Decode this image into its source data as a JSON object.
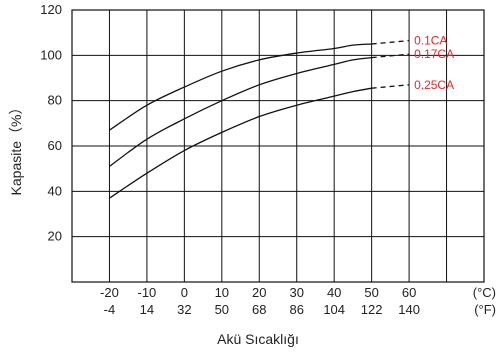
{
  "chart_data": {
    "type": "line",
    "xlabel": "Akü Sıcaklığı",
    "ylabel": "Kapasite（%）",
    "x_unit_c": "(°C)",
    "x_unit_f": "(°F)",
    "x_ticks_c": [
      "-20",
      "-10",
      "0",
      "10",
      "20",
      "30",
      "40",
      "50",
      "60"
    ],
    "x_ticks_f": [
      "-4",
      "14",
      "32",
      "50",
      "68",
      "86",
      "104",
      "122",
      "140"
    ],
    "y_ticks": [
      "20",
      "40",
      "60",
      "80",
      "100",
      "120"
    ],
    "xlim": [
      -30,
      80
    ],
    "ylim": [
      0,
      120
    ],
    "grid": true,
    "x": [
      -20,
      -10,
      0,
      10,
      20,
      30,
      40,
      45,
      50
    ],
    "series": [
      {
        "name": "0.1CA",
        "color": "#e8262b",
        "values": [
          67,
          78,
          86,
          93,
          98,
          101,
          103,
          104.5,
          105
        ],
        "dashed_end": [
          50,
          105,
          60,
          106.5
        ]
      },
      {
        "name": "0.17CA",
        "color": "#e8262b",
        "values": [
          51,
          63,
          72,
          80,
          87,
          92,
          96,
          98,
          99
        ],
        "dashed_end": [
          50,
          99,
          60,
          100.5
        ]
      },
      {
        "name": "0.25CA",
        "color": "#e8262b",
        "values": [
          37,
          48,
          58,
          66,
          73,
          78,
          82,
          84,
          85.5
        ],
        "dashed_end": [
          50,
          85.5,
          60,
          87
        ]
      }
    ]
  }
}
